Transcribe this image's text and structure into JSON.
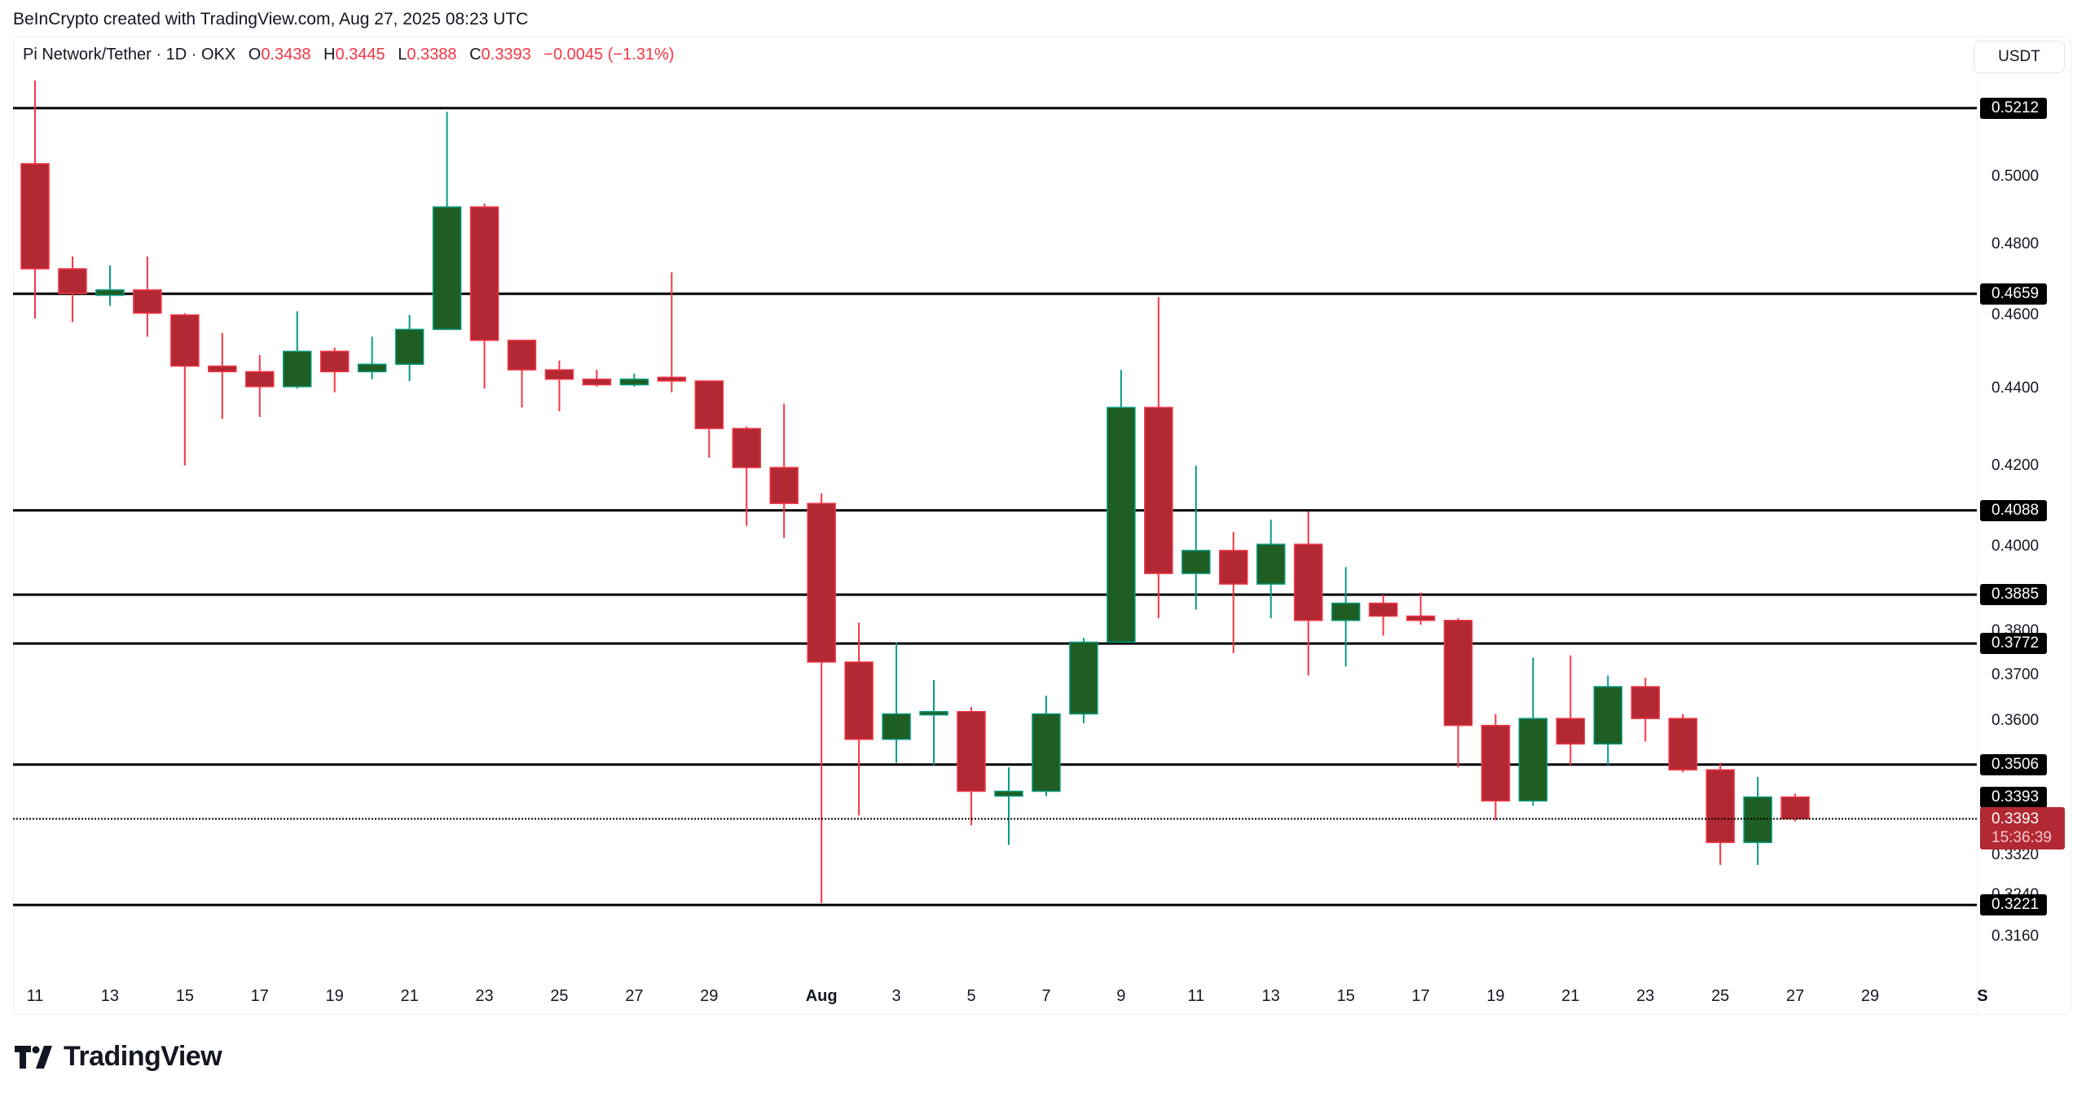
{
  "attribution": "BeInCrypto created with TradingView.com, Aug 27, 2025 08:23 UTC",
  "header": {
    "symbol": "Pi Network/Tether · 1D · OKX",
    "open_label": "O",
    "open": "0.3438",
    "high_label": "H",
    "high": "0.3445",
    "low_label": "L",
    "low": "0.3388",
    "close_label": "C",
    "close": "0.3393",
    "change": "−0.0045 (−1.31%)"
  },
  "currency_button": "USDT",
  "colors": {
    "up_body": "#1e5e22",
    "up_border": "#089981",
    "down_body": "#b22833",
    "down_border": "#f23645",
    "level_line": "#000000",
    "last_price_tag": "#b22833"
  },
  "price_axis": {
    "ticks": [
      "0.5000",
      "0.4800",
      "0.4600",
      "0.4400",
      "0.4200",
      "0.4000",
      "0.3800",
      "0.3700",
      "0.3600",
      "0.3320",
      "0.3240",
      "0.3160"
    ],
    "level_tags": [
      "0.5212",
      "0.4659",
      "0.4088",
      "0.3885",
      "0.3772",
      "0.3506",
      "0.3393",
      "0.3221"
    ],
    "last_price": "0.3393",
    "countdown": "15:36:39"
  },
  "time_axis": {
    "ticks": [
      "11",
      "13",
      "15",
      "17",
      "19",
      "21",
      "23",
      "25",
      "27",
      "29",
      "Aug",
      "3",
      "5",
      "7",
      "9",
      "11",
      "13",
      "15",
      "17",
      "19",
      "21",
      "23",
      "25",
      "27",
      "29",
      "S"
    ]
  },
  "branding": {
    "logo_text": "TradingView"
  },
  "chart_data": {
    "type": "candlestick",
    "title": "Pi Network/Tether · 1D · OKX",
    "xlabel": "",
    "ylabel": "USDT",
    "scale": "log",
    "ylim": [
      0.305,
      0.535
    ],
    "x_start": "2025-07-11",
    "x_end": "2025-08-27",
    "horizontal_levels": [
      0.5212,
      0.4659,
      0.4088,
      0.3885,
      0.3772,
      0.3506,
      0.3393,
      0.3221
    ],
    "candles": [
      {
        "d": "Jul 11",
        "o": 0.504,
        "h": 0.53,
        "l": 0.459,
        "c": 0.473
      },
      {
        "d": "Jul 12",
        "o": 0.473,
        "h": 0.4765,
        "l": 0.458,
        "c": 0.466
      },
      {
        "d": "Jul 13",
        "o": 0.4655,
        "h": 0.474,
        "l": 0.4625,
        "c": 0.467
      },
      {
        "d": "Jul 14",
        "o": 0.467,
        "h": 0.4765,
        "l": 0.454,
        "c": 0.4605
      },
      {
        "d": "Jul 15",
        "o": 0.46,
        "h": 0.4605,
        "l": 0.42,
        "c": 0.446
      },
      {
        "d": "Jul 16",
        "o": 0.446,
        "h": 0.455,
        "l": 0.432,
        "c": 0.4445
      },
      {
        "d": "Jul 17",
        "o": 0.4445,
        "h": 0.449,
        "l": 0.4325,
        "c": 0.4405
      },
      {
        "d": "Jul 18",
        "o": 0.4405,
        "h": 0.461,
        "l": 0.44,
        "c": 0.45
      },
      {
        "d": "Jul 19",
        "o": 0.45,
        "h": 0.451,
        "l": 0.439,
        "c": 0.4445
      },
      {
        "d": "Jul 20",
        "o": 0.4445,
        "h": 0.454,
        "l": 0.4425,
        "c": 0.4465
      },
      {
        "d": "Jul 21",
        "o": 0.4465,
        "h": 0.46,
        "l": 0.442,
        "c": 0.456
      },
      {
        "d": "Jul 22",
        "o": 0.456,
        "h": 0.52,
        "l": 0.456,
        "c": 0.491
      },
      {
        "d": "Jul 23",
        "o": 0.491,
        "h": 0.492,
        "l": 0.44,
        "c": 0.453
      },
      {
        "d": "Jul 24",
        "o": 0.453,
        "h": 0.453,
        "l": 0.435,
        "c": 0.445
      },
      {
        "d": "Jul 25",
        "o": 0.445,
        "h": 0.4475,
        "l": 0.434,
        "c": 0.4425
      },
      {
        "d": "Jul 26",
        "o": 0.4425,
        "h": 0.445,
        "l": 0.4405,
        "c": 0.441
      },
      {
        "d": "Jul 27",
        "o": 0.441,
        "h": 0.444,
        "l": 0.4405,
        "c": 0.4425
      },
      {
        "d": "Jul 28",
        "o": 0.443,
        "h": 0.472,
        "l": 0.439,
        "c": 0.442
      },
      {
        "d": "Jul 29",
        "o": 0.442,
        "h": 0.442,
        "l": 0.422,
        "c": 0.4295
      },
      {
        "d": "Jul 30",
        "o": 0.4295,
        "h": 0.43,
        "l": 0.405,
        "c": 0.4195
      },
      {
        "d": "Jul 31",
        "o": 0.4195,
        "h": 0.436,
        "l": 0.402,
        "c": 0.4105
      },
      {
        "d": "Aug 1",
        "o": 0.4105,
        "h": 0.413,
        "l": 0.3225,
        "c": 0.373
      },
      {
        "d": "Aug 2",
        "o": 0.373,
        "h": 0.382,
        "l": 0.34,
        "c": 0.356
      },
      {
        "d": "Aug 3",
        "o": 0.356,
        "h": 0.3775,
        "l": 0.351,
        "c": 0.3615
      },
      {
        "d": "Aug 4",
        "o": 0.3615,
        "h": 0.369,
        "l": 0.3505,
        "c": 0.362
      },
      {
        "d": "Aug 5",
        "o": 0.362,
        "h": 0.363,
        "l": 0.338,
        "c": 0.345
      },
      {
        "d": "Aug 6",
        "o": 0.344,
        "h": 0.35,
        "l": 0.334,
        "c": 0.345
      },
      {
        "d": "Aug 7",
        "o": 0.345,
        "h": 0.3655,
        "l": 0.344,
        "c": 0.3615
      },
      {
        "d": "Aug 8",
        "o": 0.3615,
        "h": 0.3785,
        "l": 0.3595,
        "c": 0.3775
      },
      {
        "d": "Aug 9",
        "o": 0.3775,
        "h": 0.445,
        "l": 0.3775,
        "c": 0.435
      },
      {
        "d": "Aug 10",
        "o": 0.435,
        "h": 0.465,
        "l": 0.383,
        "c": 0.3935
      },
      {
        "d": "Aug 11",
        "o": 0.3935,
        "h": 0.42,
        "l": 0.385,
        "c": 0.399
      },
      {
        "d": "Aug 12",
        "o": 0.399,
        "h": 0.4035,
        "l": 0.375,
        "c": 0.391
      },
      {
        "d": "Aug 13",
        "o": 0.391,
        "h": 0.4065,
        "l": 0.383,
        "c": 0.4005
      },
      {
        "d": "Aug 14",
        "o": 0.4005,
        "h": 0.4085,
        "l": 0.37,
        "c": 0.3825
      },
      {
        "d": "Aug 15",
        "o": 0.3825,
        "h": 0.395,
        "l": 0.372,
        "c": 0.3865
      },
      {
        "d": "Aug 16",
        "o": 0.3865,
        "h": 0.3885,
        "l": 0.379,
        "c": 0.3835
      },
      {
        "d": "Aug 17",
        "o": 0.3835,
        "h": 0.389,
        "l": 0.3815,
        "c": 0.3825
      },
      {
        "d": "Aug 18",
        "o": 0.3825,
        "h": 0.383,
        "l": 0.35,
        "c": 0.359
      },
      {
        "d": "Aug 19",
        "o": 0.359,
        "h": 0.3615,
        "l": 0.339,
        "c": 0.343
      },
      {
        "d": "Aug 20",
        "o": 0.343,
        "h": 0.374,
        "l": 0.342,
        "c": 0.3605
      },
      {
        "d": "Aug 21",
        "o": 0.3605,
        "h": 0.3745,
        "l": 0.3505,
        "c": 0.355
      },
      {
        "d": "Aug 22",
        "o": 0.355,
        "h": 0.37,
        "l": 0.3505,
        "c": 0.3675
      },
      {
        "d": "Aug 23",
        "o": 0.3675,
        "h": 0.3695,
        "l": 0.3555,
        "c": 0.3605
      },
      {
        "d": "Aug 24",
        "o": 0.3605,
        "h": 0.3615,
        "l": 0.349,
        "c": 0.3495
      },
      {
        "d": "Aug 25",
        "o": 0.3495,
        "h": 0.351,
        "l": 0.33,
        "c": 0.3345
      },
      {
        "d": "Aug 26",
        "o": 0.3345,
        "h": 0.348,
        "l": 0.33,
        "c": 0.3438
      },
      {
        "d": "Aug 27",
        "o": 0.3438,
        "h": 0.3445,
        "l": 0.3388,
        "c": 0.3393
      }
    ]
  }
}
